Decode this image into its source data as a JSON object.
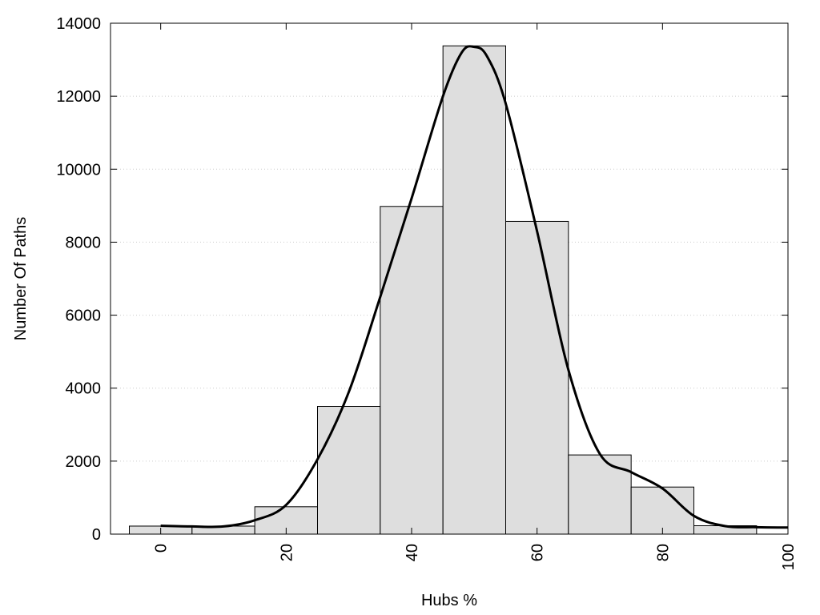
{
  "chart_data": {
    "type": "bar",
    "title": "",
    "xlabel": "Hubs %",
    "ylabel": "Number Of Paths",
    "xlim": [
      -8,
      100
    ],
    "ylim": [
      0,
      14000
    ],
    "x_ticks": [
      0,
      20,
      40,
      60,
      80,
      100
    ],
    "y_ticks": [
      0,
      2000,
      4000,
      6000,
      8000,
      10000,
      12000,
      14000
    ],
    "grid": "horizontal dotted",
    "bin_width": 10,
    "bars": [
      {
        "x": 0,
        "value": 220
      },
      {
        "x": 10,
        "value": 220
      },
      {
        "x": 20,
        "value": 750
      },
      {
        "x": 30,
        "value": 3500
      },
      {
        "x": 40,
        "value": 8980
      },
      {
        "x": 50,
        "value": 13380
      },
      {
        "x": 60,
        "value": 8570
      },
      {
        "x": 70,
        "value": 2170
      },
      {
        "x": 80,
        "value": 1290
      },
      {
        "x": 90,
        "value": 230
      }
    ],
    "curve": {
      "x": [
        0,
        5,
        10,
        15,
        20,
        25,
        30,
        35,
        40,
        45,
        48,
        50,
        52,
        55,
        60,
        65,
        70,
        75,
        80,
        85,
        90,
        95,
        100
      ],
      "y": [
        230,
        210,
        210,
        380,
        800,
        2050,
        3900,
        6500,
        9200,
        12000,
        13200,
        13350,
        13100,
        11800,
        8300,
        4500,
        2200,
        1700,
        1250,
        500,
        220,
        190,
        180
      ]
    },
    "colors": {
      "bar_fill": "#dedede",
      "bar_stroke": "#000000",
      "curve": "#000000",
      "grid": "#cccccc"
    }
  }
}
